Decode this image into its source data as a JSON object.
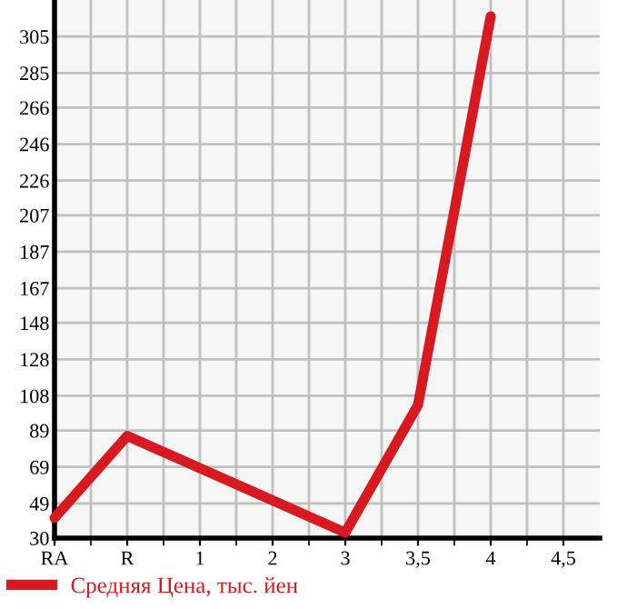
{
  "chart_data": {
    "type": "line",
    "categories": [
      "RA",
      "R",
      "1",
      "2",
      "3",
      "3,5",
      "4",
      "4,5"
    ],
    "series": [
      {
        "name": "Средняя Цена, тыс. йен",
        "color": "#d71920",
        "values": [
          41,
          86,
          null,
          null,
          33,
          103,
          316,
          null
        ]
      }
    ],
    "ylim": [
      30,
      325
    ],
    "yticks": [
      30,
      49,
      69,
      89,
      108,
      128,
      148,
      167,
      187,
      207,
      226,
      246,
      266,
      285,
      305
    ],
    "grid": true,
    "legend": "bottom left",
    "marker": "none",
    "line_style": "solid"
  }
}
